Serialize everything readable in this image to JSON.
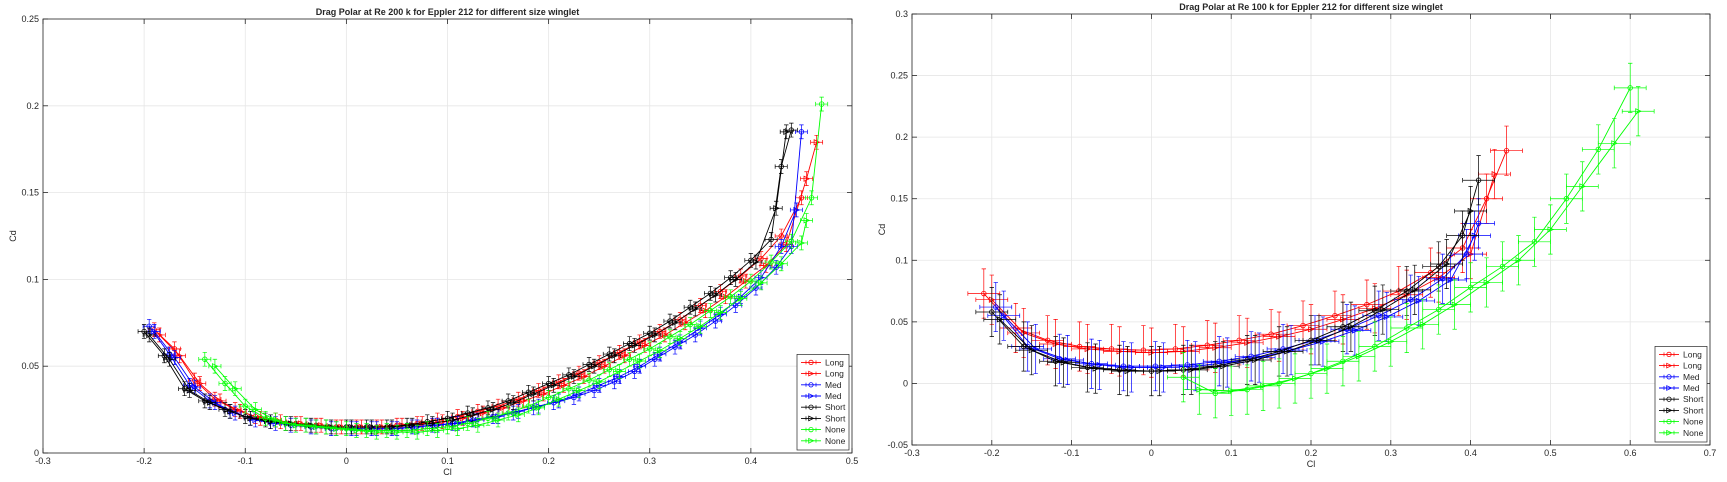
{
  "figure": {
    "background": "#ffffff",
    "grid_color": "#e6e6e6",
    "axis_color": "#262626"
  },
  "chart_data": [
    {
      "type": "line",
      "title": "Drag Polar at Re 200 k for Eppler 212 for different size winglet",
      "xlabel": "Cl",
      "ylabel": "Cd",
      "xlim": [
        -0.3,
        0.5
      ],
      "ylim": [
        0,
        0.25
      ],
      "xticks": [
        "-0.3",
        "-0.2",
        "-0.1",
        "0",
        "0.1",
        "0.2",
        "0.3",
        "0.4",
        "0.5"
      ],
      "yticks": [
        "0",
        "0.05",
        "0.1",
        "0.15",
        "0.2",
        "0.25"
      ],
      "grid": true,
      "legend_position": "bottom-right",
      "series": [
        {
          "name": "Long",
          "color": "#ff0000",
          "marker": "circle",
          "xerr": 0.006,
          "yerr": 0.004,
          "x": [
            -0.19,
            -0.17,
            -0.15,
            -0.13,
            -0.11,
            -0.09,
            -0.07,
            -0.05,
            -0.03,
            -0.01,
            0.01,
            0.03,
            0.05,
            0.07,
            0.09,
            0.11,
            0.13,
            0.15,
            0.17,
            0.19,
            0.21,
            0.23,
            0.25,
            0.27,
            0.29,
            0.31,
            0.33,
            0.35,
            0.37,
            0.39,
            0.41,
            0.43,
            0.45
          ],
          "y": [
            0.071,
            0.06,
            0.042,
            0.031,
            0.025,
            0.021,
            0.019,
            0.017,
            0.016,
            0.015,
            0.015,
            0.015,
            0.016,
            0.017,
            0.019,
            0.021,
            0.024,
            0.027,
            0.031,
            0.036,
            0.041,
            0.046,
            0.052,
            0.058,
            0.064,
            0.07,
            0.077,
            0.085,
            0.093,
            0.102,
            0.112,
            0.125,
            0.147
          ]
        },
        {
          "name": "Long",
          "color": "#ff0000",
          "marker": "triangle-right",
          "xerr": 0.006,
          "yerr": 0.004,
          "x": [
            -0.185,
            -0.165,
            -0.145,
            -0.125,
            -0.105,
            -0.085,
            -0.065,
            -0.045,
            -0.025,
            -0.005,
            0.015,
            0.035,
            0.055,
            0.075,
            0.095,
            0.115,
            0.135,
            0.155,
            0.175,
            0.195,
            0.215,
            0.235,
            0.255,
            0.275,
            0.295,
            0.315,
            0.335,
            0.355,
            0.375,
            0.395,
            0.415,
            0.435,
            0.455,
            0.465
          ],
          "y": [
            0.068,
            0.056,
            0.04,
            0.03,
            0.024,
            0.02,
            0.018,
            0.017,
            0.016,
            0.015,
            0.015,
            0.015,
            0.016,
            0.017,
            0.018,
            0.02,
            0.023,
            0.026,
            0.03,
            0.034,
            0.039,
            0.044,
            0.05,
            0.056,
            0.062,
            0.068,
            0.075,
            0.082,
            0.09,
            0.099,
            0.108,
            0.12,
            0.158,
            0.179
          ]
        },
        {
          "name": "Med",
          "color": "#0000ff",
          "marker": "circle",
          "xerr": 0.006,
          "yerr": 0.004,
          "x": [
            -0.195,
            -0.175,
            -0.155,
            -0.135,
            -0.115,
            -0.095,
            -0.075,
            -0.055,
            -0.035,
            -0.015,
            0.005,
            0.025,
            0.045,
            0.065,
            0.085,
            0.105,
            0.125,
            0.145,
            0.165,
            0.185,
            0.205,
            0.225,
            0.245,
            0.265,
            0.285,
            0.305,
            0.325,
            0.345,
            0.365,
            0.385,
            0.405,
            0.425,
            0.44,
            0.45
          ],
          "y": [
            0.073,
            0.057,
            0.039,
            0.03,
            0.024,
            0.02,
            0.018,
            0.016,
            0.015,
            0.014,
            0.014,
            0.014,
            0.014,
            0.015,
            0.016,
            0.017,
            0.019,
            0.021,
            0.023,
            0.026,
            0.029,
            0.032,
            0.036,
            0.041,
            0.047,
            0.054,
            0.061,
            0.068,
            0.076,
            0.085,
            0.095,
            0.107,
            0.119,
            0.185
          ]
        },
        {
          "name": "Med",
          "color": "#0000ff",
          "marker": "triangle-right",
          "xerr": 0.006,
          "yerr": 0.004,
          "x": [
            -0.19,
            -0.17,
            -0.15,
            -0.13,
            -0.11,
            -0.09,
            -0.07,
            -0.05,
            -0.03,
            -0.01,
            0.01,
            0.03,
            0.05,
            0.07,
            0.09,
            0.11,
            0.13,
            0.15,
            0.17,
            0.19,
            0.21,
            0.23,
            0.25,
            0.27,
            0.29,
            0.31,
            0.33,
            0.35,
            0.37,
            0.39,
            0.41,
            0.43,
            0.445
          ],
          "y": [
            0.07,
            0.055,
            0.038,
            0.029,
            0.023,
            0.019,
            0.017,
            0.016,
            0.015,
            0.014,
            0.014,
            0.014,
            0.014,
            0.015,
            0.016,
            0.017,
            0.019,
            0.021,
            0.024,
            0.027,
            0.03,
            0.034,
            0.039,
            0.044,
            0.05,
            0.057,
            0.064,
            0.072,
            0.08,
            0.09,
            0.101,
            0.119,
            0.14
          ]
        },
        {
          "name": "Short",
          "color": "#000000",
          "marker": "circle",
          "xerr": 0.006,
          "yerr": 0.004,
          "x": [
            -0.2,
            -0.18,
            -0.16,
            -0.14,
            -0.12,
            -0.1,
            -0.08,
            -0.06,
            -0.04,
            -0.02,
            0,
            0.02,
            0.04,
            0.06,
            0.08,
            0.1,
            0.12,
            0.14,
            0.16,
            0.18,
            0.2,
            0.22,
            0.24,
            0.26,
            0.28,
            0.3,
            0.32,
            0.34,
            0.36,
            0.38,
            0.4,
            0.42,
            0.43,
            0.44
          ],
          "y": [
            0.07,
            0.056,
            0.037,
            0.03,
            0.025,
            0.021,
            0.019,
            0.017,
            0.016,
            0.015,
            0.015,
            0.015,
            0.015,
            0.016,
            0.018,
            0.02,
            0.023,
            0.026,
            0.03,
            0.035,
            0.04,
            0.045,
            0.051,
            0.057,
            0.063,
            0.069,
            0.076,
            0.084,
            0.092,
            0.101,
            0.111,
            0.123,
            0.165,
            0.186
          ]
        },
        {
          "name": "Short",
          "color": "#000000",
          "marker": "triangle-right",
          "xerr": 0.006,
          "yerr": 0.004,
          "x": [
            -0.195,
            -0.175,
            -0.155,
            -0.135,
            -0.115,
            -0.095,
            -0.075,
            -0.055,
            -0.035,
            -0.015,
            0.005,
            0.025,
            0.045,
            0.065,
            0.085,
            0.105,
            0.125,
            0.145,
            0.165,
            0.185,
            0.205,
            0.225,
            0.245,
            0.265,
            0.285,
            0.305,
            0.325,
            0.345,
            0.365,
            0.385,
            0.405,
            0.425,
            0.435
          ],
          "y": [
            0.068,
            0.054,
            0.036,
            0.029,
            0.024,
            0.02,
            0.018,
            0.017,
            0.016,
            0.015,
            0.015,
            0.015,
            0.015,
            0.016,
            0.017,
            0.019,
            0.022,
            0.025,
            0.029,
            0.034,
            0.039,
            0.044,
            0.05,
            0.056,
            0.062,
            0.068,
            0.075,
            0.083,
            0.091,
            0.1,
            0.11,
            0.141,
            0.185
          ]
        },
        {
          "name": "None",
          "color": "#00ff00",
          "marker": "circle",
          "xerr": 0.006,
          "yerr": 0.004,
          "x": [
            -0.14,
            -0.12,
            -0.1,
            -0.08,
            -0.06,
            -0.04,
            -0.02,
            0,
            0.02,
            0.04,
            0.06,
            0.08,
            0.1,
            0.12,
            0.14,
            0.16,
            0.18,
            0.2,
            0.22,
            0.24,
            0.26,
            0.28,
            0.3,
            0.32,
            0.34,
            0.36,
            0.38,
            0.4,
            0.42,
            0.44,
            0.46,
            0.47
          ],
          "y": [
            0.054,
            0.04,
            0.027,
            0.02,
            0.017,
            0.016,
            0.015,
            0.014,
            0.013,
            0.013,
            0.013,
            0.014,
            0.015,
            0.017,
            0.02,
            0.023,
            0.027,
            0.032,
            0.037,
            0.042,
            0.048,
            0.054,
            0.06,
            0.067,
            0.074,
            0.082,
            0.09,
            0.099,
            0.11,
            0.122,
            0.147,
            0.201
          ]
        },
        {
          "name": "None",
          "color": "#00ff00",
          "marker": "triangle-right",
          "xerr": 0.006,
          "yerr": 0.004,
          "x": [
            -0.13,
            -0.11,
            -0.09,
            -0.07,
            -0.05,
            -0.03,
            -0.01,
            0.01,
            0.03,
            0.05,
            0.07,
            0.09,
            0.11,
            0.13,
            0.15,
            0.17,
            0.19,
            0.21,
            0.23,
            0.25,
            0.27,
            0.29,
            0.31,
            0.33,
            0.35,
            0.37,
            0.39,
            0.41,
            0.43,
            0.45,
            0.455
          ],
          "y": [
            0.05,
            0.037,
            0.025,
            0.019,
            0.016,
            0.015,
            0.014,
            0.013,
            0.012,
            0.012,
            0.012,
            0.013,
            0.014,
            0.016,
            0.019,
            0.022,
            0.026,
            0.031,
            0.036,
            0.041,
            0.047,
            0.053,
            0.059,
            0.066,
            0.073,
            0.081,
            0.089,
            0.098,
            0.109,
            0.121,
            0.134
          ]
        }
      ]
    },
    {
      "type": "line",
      "title": "Drag Polar at Re 100 k for Eppler 212 for different size winglet",
      "xlabel": "Cl",
      "ylabel": "Cd",
      "xlim": [
        -0.3,
        0.7
      ],
      "ylim": [
        -0.05,
        0.3
      ],
      "xticks": [
        "-0.3",
        "-0.2",
        "-0.1",
        "0",
        "0.1",
        "0.2",
        "0.3",
        "0.4",
        "0.5",
        "0.6",
        "0.7"
      ],
      "yticks": [
        "-0.05",
        "0",
        "0.05",
        "0.1",
        "0.15",
        "0.2",
        "0.25",
        "0.3"
      ],
      "grid": true,
      "legend_position": "bottom-right",
      "series": [
        {
          "name": "Long",
          "color": "#ff0000",
          "marker": "circle",
          "xerr": 0.02,
          "yerr": 0.02,
          "x": [
            -0.21,
            -0.17,
            -0.13,
            -0.09,
            -0.05,
            -0.01,
            0.03,
            0.07,
            0.11,
            0.15,
            0.19,
            0.23,
            0.27,
            0.31,
            0.35,
            0.39,
            0.42,
            0.445
          ],
          "y": [
            0.073,
            0.045,
            0.035,
            0.03,
            0.028,
            0.027,
            0.028,
            0.031,
            0.035,
            0.04,
            0.047,
            0.055,
            0.064,
            0.075,
            0.09,
            0.11,
            0.15,
            0.189
          ]
        },
        {
          "name": "Long",
          "color": "#ff0000",
          "marker": "triangle-right",
          "xerr": 0.02,
          "yerr": 0.02,
          "x": [
            -0.2,
            -0.16,
            -0.12,
            -0.08,
            -0.04,
            0,
            0.04,
            0.08,
            0.12,
            0.16,
            0.2,
            0.24,
            0.28,
            0.32,
            0.36,
            0.4,
            0.43
          ],
          "y": [
            0.068,
            0.041,
            0.032,
            0.028,
            0.026,
            0.025,
            0.026,
            0.029,
            0.033,
            0.038,
            0.044,
            0.052,
            0.061,
            0.072,
            0.086,
            0.105,
            0.17
          ]
        },
        {
          "name": "Med",
          "color": "#0000ff",
          "marker": "circle",
          "xerr": 0.02,
          "yerr": 0.02,
          "x": [
            -0.195,
            -0.155,
            -0.115,
            -0.075,
            -0.035,
            0.005,
            0.045,
            0.085,
            0.125,
            0.165,
            0.205,
            0.245,
            0.285,
            0.325,
            0.365,
            0.395,
            0.41
          ],
          "y": [
            0.062,
            0.03,
            0.02,
            0.016,
            0.014,
            0.014,
            0.015,
            0.018,
            0.022,
            0.028,
            0.035,
            0.044,
            0.055,
            0.068,
            0.085,
            0.105,
            0.13
          ]
        },
        {
          "name": "Med",
          "color": "#0000ff",
          "marker": "triangle-right",
          "xerr": 0.02,
          "yerr": 0.02,
          "x": [
            -0.185,
            -0.145,
            -0.105,
            -0.065,
            -0.025,
            0.015,
            0.055,
            0.095,
            0.135,
            0.175,
            0.215,
            0.255,
            0.295,
            0.335,
            0.375,
            0.405
          ],
          "y": [
            0.055,
            0.028,
            0.019,
            0.015,
            0.013,
            0.013,
            0.014,
            0.017,
            0.021,
            0.027,
            0.034,
            0.043,
            0.054,
            0.067,
            0.084,
            0.12
          ]
        },
        {
          "name": "Short",
          "color": "#000000",
          "marker": "circle",
          "xerr": 0.02,
          "yerr": 0.02,
          "x": [
            -0.2,
            -0.16,
            -0.12,
            -0.08,
            -0.04,
            0,
            0.04,
            0.08,
            0.12,
            0.16,
            0.2,
            0.24,
            0.28,
            0.32,
            0.36,
            0.39,
            0.41
          ],
          "y": [
            0.058,
            0.03,
            0.018,
            0.013,
            0.011,
            0.01,
            0.011,
            0.014,
            0.019,
            0.026,
            0.035,
            0.046,
            0.059,
            0.075,
            0.095,
            0.12,
            0.165
          ]
        },
        {
          "name": "Short",
          "color": "#000000",
          "marker": "triangle-right",
          "xerr": 0.02,
          "yerr": 0.02,
          "x": [
            -0.19,
            -0.15,
            -0.11,
            -0.07,
            -0.03,
            0.01,
            0.05,
            0.09,
            0.13,
            0.17,
            0.21,
            0.25,
            0.29,
            0.33,
            0.37,
            0.4
          ],
          "y": [
            0.052,
            0.027,
            0.017,
            0.012,
            0.01,
            0.01,
            0.011,
            0.014,
            0.019,
            0.026,
            0.035,
            0.046,
            0.06,
            0.076,
            0.097,
            0.14
          ]
        },
        {
          "name": "None",
          "color": "#00ff00",
          "marker": "circle",
          "xerr": 0.02,
          "yerr": 0.02,
          "x": [
            0.04,
            0.08,
            0.12,
            0.16,
            0.2,
            0.24,
            0.28,
            0.32,
            0.36,
            0.4,
            0.44,
            0.48,
            0.52,
            0.56,
            0.6
          ],
          "y": [
            0.005,
            -0.008,
            -0.005,
            0.0,
            0.008,
            0.018,
            0.03,
            0.045,
            0.06,
            0.078,
            0.095,
            0.115,
            0.15,
            0.19,
            0.24
          ]
        },
        {
          "name": "None",
          "color": "#00ff00",
          "marker": "triangle-right",
          "xerr": 0.02,
          "yerr": 0.02,
          "x": [
            0.06,
            0.1,
            0.14,
            0.18,
            0.22,
            0.26,
            0.3,
            0.34,
            0.38,
            0.42,
            0.46,
            0.5,
            0.54,
            0.58,
            0.61
          ],
          "y": [
            -0.005,
            -0.006,
            -0.002,
            0.004,
            0.012,
            0.022,
            0.034,
            0.048,
            0.064,
            0.082,
            0.1,
            0.125,
            0.16,
            0.195,
            0.221
          ]
        }
      ]
    }
  ]
}
